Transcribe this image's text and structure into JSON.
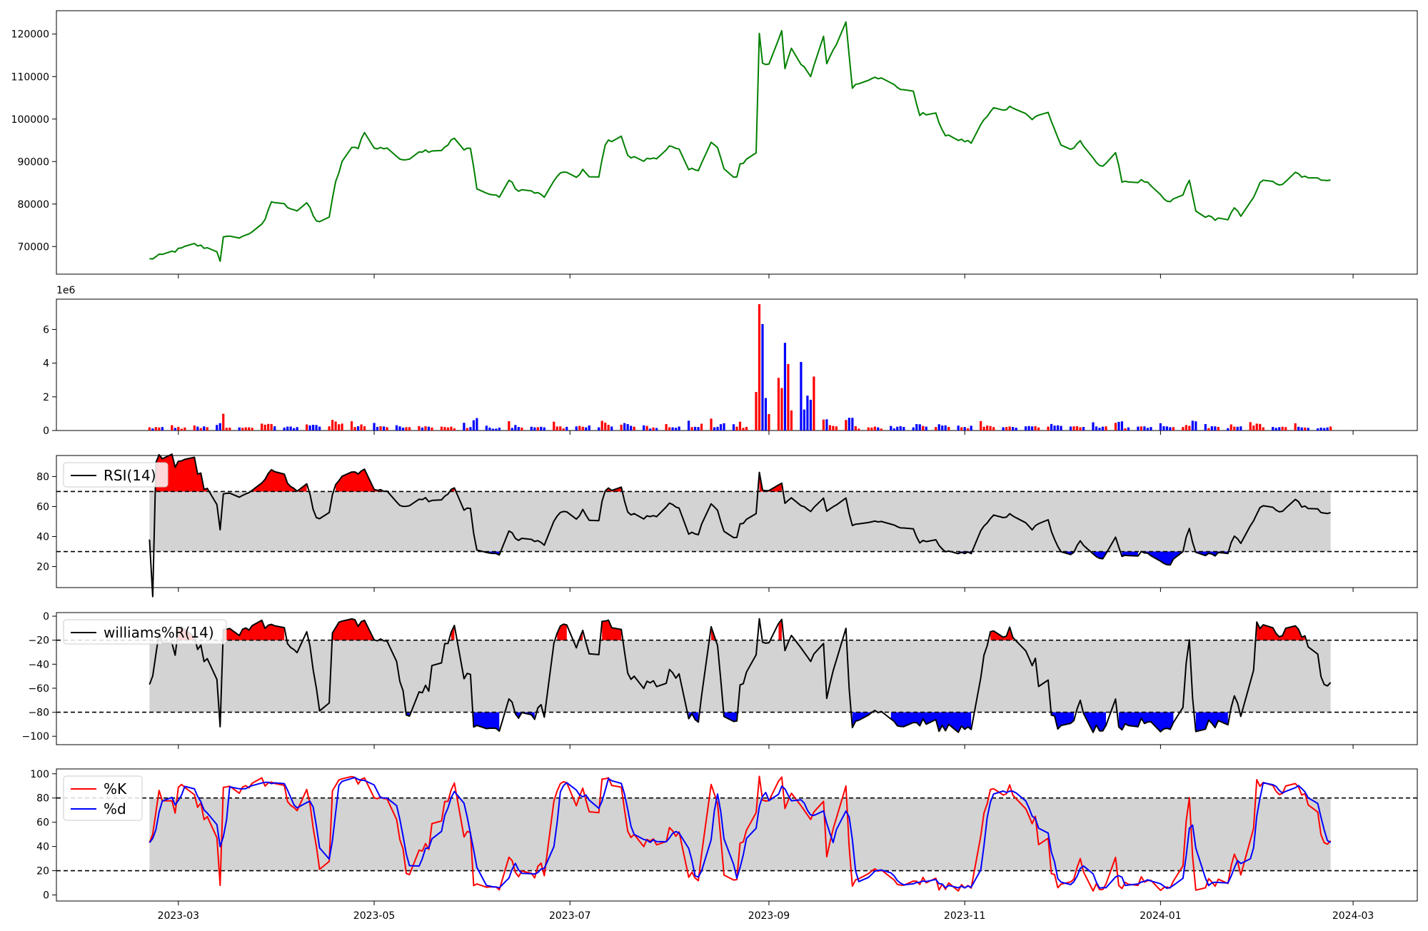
{
  "figure": {
    "x_tick_labels": [
      "2023-03",
      "2023-05",
      "2023-07",
      "2023-09",
      "2023-11",
      "2024-01",
      "2024-03"
    ]
  },
  "colors": {
    "price_line": "#008000",
    "up": "#ff0000",
    "down": "#0000ff",
    "indicator_line": "#000000",
    "band_fill": "#d3d3d3",
    "k_line": "#ff0000",
    "d_line": "#0000ff"
  },
  "chart_data": [
    {
      "type": "line",
      "panel": "price",
      "x_start": "2023-02-20",
      "x_end": "2024-02-23",
      "ylim": [
        63500,
        125500
      ],
      "y_ticks": [
        "70000",
        "80000",
        "90000",
        "100000",
        "110000",
        "120000"
      ],
      "series": [
        {
          "points": [
            [
              "2023-02-20",
              67000
            ],
            [
              "2023-03-06",
              70500
            ],
            [
              "2023-03-13",
              69000
            ],
            [
              "2023-03-14",
              66800
            ],
            [
              "2023-03-15",
              72000
            ],
            [
              "2023-03-22",
              72500
            ],
            [
              "2023-03-28",
              76000
            ],
            [
              "2023-03-30",
              80600
            ],
            [
              "2023-04-03",
              79800
            ],
            [
              "2023-04-07",
              78500
            ],
            [
              "2023-04-10",
              80300
            ],
            [
              "2023-04-13",
              75800
            ],
            [
              "2023-04-17",
              77000
            ],
            [
              "2023-04-19",
              85000
            ],
            [
              "2023-04-21",
              90000
            ],
            [
              "2023-04-24",
              93000
            ],
            [
              "2023-04-26",
              93400
            ],
            [
              "2023-04-28",
              97200
            ],
            [
              "2023-05-01",
              93000
            ],
            [
              "2023-05-05",
              93300
            ],
            [
              "2023-05-10",
              90000
            ],
            [
              "2023-05-15",
              92500
            ],
            [
              "2023-05-22",
              92800
            ],
            [
              "2023-05-26",
              95500
            ],
            [
              "2023-05-29",
              92700
            ],
            [
              "2023-05-31",
              93000
            ],
            [
              "2023-06-02",
              84000
            ],
            [
              "2023-06-05",
              82500
            ],
            [
              "2023-06-09",
              81800
            ],
            [
              "2023-06-12",
              85600
            ],
            [
              "2023-06-15",
              83000
            ],
            [
              "2023-06-20",
              83000
            ],
            [
              "2023-06-23",
              81700
            ],
            [
              "2023-06-28",
              87500
            ],
            [
              "2023-07-03",
              86300
            ],
            [
              "2023-07-05",
              88100
            ],
            [
              "2023-07-07",
              86100
            ],
            [
              "2023-07-10",
              86300
            ],
            [
              "2023-07-12",
              94300
            ],
            [
              "2023-07-17",
              96200
            ],
            [
              "2023-07-19",
              91200
            ],
            [
              "2023-07-24",
              90300
            ],
            [
              "2023-07-28",
              91100
            ],
            [
              "2023-08-01",
              93500
            ],
            [
              "2023-08-04",
              92500
            ],
            [
              "2023-08-07",
              88000
            ],
            [
              "2023-08-10",
              88300
            ],
            [
              "2023-08-14",
              94500
            ],
            [
              "2023-08-16",
              93100
            ],
            [
              "2023-08-18",
              88300
            ],
            [
              "2023-08-21",
              86200
            ],
            [
              "2023-08-22",
              86000
            ],
            [
              "2023-08-23",
              89300
            ],
            [
              "2023-08-28",
              92300
            ],
            [
              "2023-08-29",
              120000
            ],
            [
              "2023-08-30",
              113200
            ],
            [
              "2023-09-01",
              112800
            ],
            [
              "2023-09-05",
              120900
            ],
            [
              "2023-09-06",
              112100
            ],
            [
              "2023-09-08",
              117000
            ],
            [
              "2023-09-11",
              112800
            ],
            [
              "2023-09-14",
              110000
            ],
            [
              "2023-09-18",
              119200
            ],
            [
              "2023-09-19",
              113200
            ],
            [
              "2023-09-25",
              122500
            ],
            [
              "2023-09-27",
              107700
            ],
            [
              "2023-10-04",
              110200
            ],
            [
              "2023-10-12",
              107200
            ],
            [
              "2023-10-16",
              106200
            ],
            [
              "2023-10-18",
              101200
            ],
            [
              "2023-10-23",
              101000
            ],
            [
              "2023-10-26",
              96000
            ],
            [
              "2023-10-30",
              95200
            ],
            [
              "2023-11-03",
              94500
            ],
            [
              "2023-11-06",
              98700
            ],
            [
              "2023-11-10",
              102500
            ],
            [
              "2023-11-13",
              102300
            ],
            [
              "2023-11-16",
              103000
            ],
            [
              "2023-11-20",
              101300
            ],
            [
              "2023-11-22",
              100000
            ],
            [
              "2023-11-24",
              100800
            ],
            [
              "2023-11-27",
              101500
            ],
            [
              "2023-12-01",
              93800
            ],
            [
              "2023-12-05",
              92800
            ],
            [
              "2023-12-07",
              94800
            ],
            [
              "2023-12-11",
              90500
            ],
            [
              "2023-12-14",
              89000
            ],
            [
              "2023-12-18",
              91700
            ],
            [
              "2023-12-20",
              85600
            ],
            [
              "2023-12-22",
              85300
            ],
            [
              "2023-12-27",
              85400
            ],
            [
              "2023-12-29",
              84100
            ],
            [
              "2024-01-02",
              81000
            ],
            [
              "2024-01-04",
              80400
            ],
            [
              "2024-01-08",
              82300
            ],
            [
              "2024-01-10",
              85500
            ],
            [
              "2024-01-12",
              78300
            ],
            [
              "2024-01-16",
              76900
            ],
            [
              "2024-01-18",
              76600
            ],
            [
              "2024-01-22",
              76500
            ],
            [
              "2024-01-24",
              78900
            ],
            [
              "2024-01-26",
              77100
            ],
            [
              "2024-01-29",
              80100
            ],
            [
              "2024-02-01",
              85300
            ],
            [
              "2024-02-06",
              85000
            ],
            [
              "2024-02-08",
              84300
            ],
            [
              "2024-02-12",
              87300
            ],
            [
              "2024-02-16",
              85900
            ]
          ]
        }
      ]
    },
    {
      "type": "bar",
      "panel": "volume",
      "ylim": [
        0,
        7800000
      ],
      "y_ticks": [
        "0",
        "2",
        "4",
        "6"
      ],
      "offset_label": "1e6",
      "series": [
        {
          "points": []
        }
      ]
    },
    {
      "type": "line",
      "panel": "rsi",
      "ylim": [
        6,
        94
      ],
      "y_ticks": [
        "20",
        "40",
        "60",
        "80"
      ],
      "legend": [
        "RSI(14)"
      ],
      "legend_placement": "upper-left",
      "band": [
        30,
        70
      ],
      "series": [
        {
          "name": "RSI(14)",
          "points": []
        }
      ]
    },
    {
      "type": "line",
      "panel": "williams",
      "ylim": [
        -107,
        3
      ],
      "y_ticks": [
        "0",
        "−20",
        "−40",
        "−60",
        "−80",
        "−100"
      ],
      "legend": [
        "williams%R(14)"
      ],
      "legend_placement": "upper-left",
      "band": [
        -80,
        -20
      ],
      "series": [
        {
          "name": "williams%R(14)",
          "points": []
        }
      ]
    },
    {
      "type": "line",
      "panel": "stochastic",
      "ylim": [
        -5,
        104
      ],
      "y_ticks": [
        "0",
        "20",
        "40",
        "60",
        "80",
        "100"
      ],
      "legend": [
        "%K",
        "%d"
      ],
      "legend_placement": "upper-left",
      "band": [
        20,
        80
      ],
      "series": [
        {
          "name": "%K",
          "points": []
        },
        {
          "name": "%d",
          "points": []
        }
      ]
    }
  ]
}
